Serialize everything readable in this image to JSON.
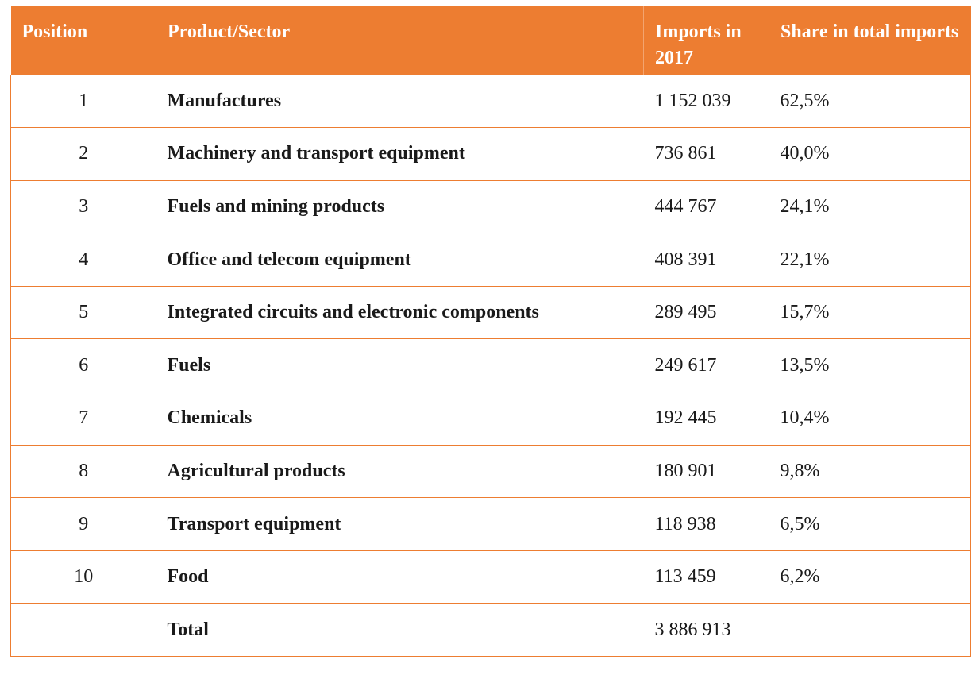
{
  "table": {
    "headers": {
      "position": "Position",
      "product": "Product/Sector",
      "imports": "Imports in 2017",
      "share": "Share in total imports"
    },
    "rows": [
      {
        "position": "1",
        "product": "Manufactures",
        "imports": "1 152 039",
        "share": "62,5%"
      },
      {
        "position": "2",
        "product": "Machinery and transport equipment",
        "imports": "736 861",
        "share": "40,0%"
      },
      {
        "position": "3",
        "product": "Fuels and mining products",
        "imports": "444 767",
        "share": "24,1%"
      },
      {
        "position": "4",
        "product": "Office and telecom equipment",
        "imports": "408 391",
        "share": "22,1%"
      },
      {
        "position": "5",
        "product": "Integrated circuits and electronic components",
        "imports": "289 495",
        "share": "15,7%"
      },
      {
        "position": "6",
        "product": "Fuels",
        "imports": "249 617",
        "share": "13,5%"
      },
      {
        "position": "7",
        "product": "Chemicals",
        "imports": "192 445",
        "share": "10,4%"
      },
      {
        "position": "8",
        "product": "Agricultural products",
        "imports": "180 901",
        "share": "9,8%"
      },
      {
        "position": "9",
        "product": "Transport equipment",
        "imports": "118 938",
        "share": "6,5%"
      },
      {
        "position": "10",
        "product": "Food",
        "imports": "113 459",
        "share": "6,2%"
      },
      {
        "position": "",
        "product": "Total",
        "imports": "3 886 913",
        "share": ""
      }
    ]
  },
  "colors": {
    "header_bg": "#ed7d31",
    "header_text": "#ffffff",
    "border": "#ed7d31"
  }
}
